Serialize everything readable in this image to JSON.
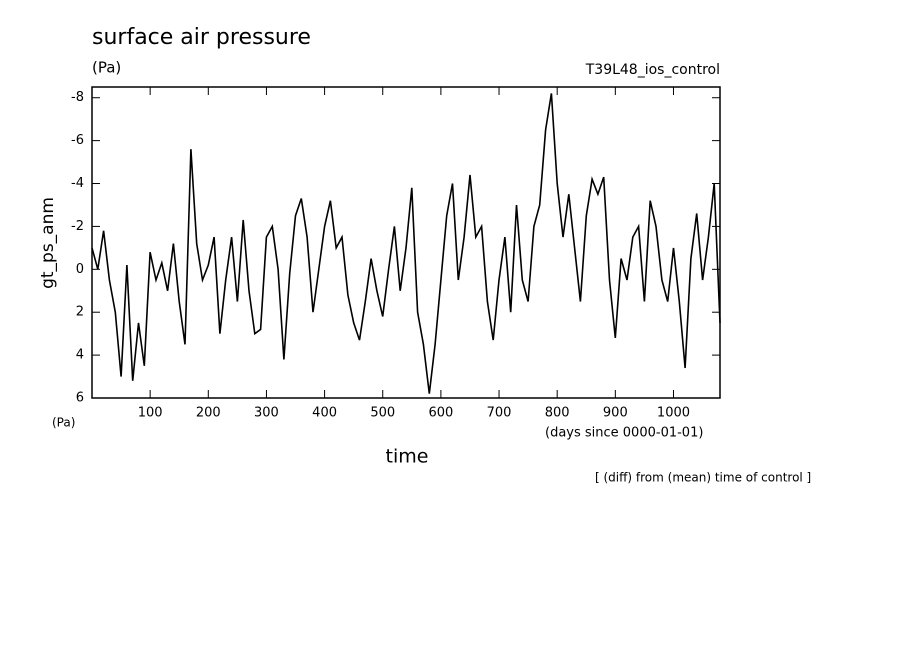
{
  "chart_data": {
    "type": "line",
    "title": "surface air pressure",
    "units_top": "(Pa)",
    "experiment": "T39L48_ios_control",
    "y_label": "gt_ps_anm",
    "units_axis": "(Pa)",
    "x_units": "(days since 0000-01-01)",
    "x_label": "time",
    "note": "[ (diff) from (mean) time of control ]",
    "color": "#000000",
    "xlim": [
      0,
      1080
    ],
    "xticks": [
      100,
      200,
      300,
      400,
      500,
      600,
      700,
      800,
      900,
      1000
    ],
    "ylim": [
      6,
      -8.5
    ],
    "yticks": [
      -8,
      -6,
      -4,
      -2,
      0,
      2,
      4,
      6
    ],
    "x": [
      0,
      10,
      20,
      30,
      40,
      50,
      60,
      70,
      80,
      90,
      100,
      110,
      120,
      130,
      140,
      150,
      160,
      170,
      180,
      190,
      200,
      210,
      220,
      230,
      240,
      250,
      260,
      270,
      280,
      290,
      300,
      310,
      320,
      330,
      340,
      350,
      360,
      370,
      380,
      390,
      400,
      410,
      420,
      430,
      440,
      450,
      460,
      470,
      480,
      490,
      500,
      510,
      520,
      530,
      540,
      550,
      560,
      570,
      580,
      590,
      600,
      610,
      620,
      630,
      640,
      650,
      660,
      670,
      680,
      690,
      700,
      710,
      720,
      730,
      740,
      750,
      760,
      770,
      780,
      790,
      800,
      810,
      820,
      830,
      840,
      850,
      860,
      870,
      880,
      890,
      900,
      910,
      920,
      930,
      940,
      950,
      960,
      970,
      980,
      990,
      1000,
      1010,
      1020,
      1030,
      1040,
      1050,
      1060,
      1070,
      1080
    ],
    "values": [
      -1,
      0,
      -1.8,
      0.5,
      2,
      5,
      -0.2,
      5.2,
      2.5,
      4.5,
      -0.8,
      0.5,
      -0.3,
      1,
      -1.2,
      1.5,
      3.5,
      -5.6,
      -1.2,
      0.5,
      -0.2,
      -1.5,
      3,
      0.5,
      -1.5,
      1.5,
      -2.3,
      1,
      3,
      2.8,
      -1.5,
      -2,
      0,
      4.2,
      0.2,
      -2.5,
      -3.3,
      -1.5,
      2,
      0,
      -2,
      -3.2,
      -1,
      -1.5,
      1.2,
      2.5,
      3.3,
      1.5,
      -0.5,
      1,
      2.2,
      0,
      -2,
      1,
      -1,
      -3.8,
      2,
      3.5,
      5.8,
      3.5,
      0.5,
      -2.5,
      -4,
      0.5,
      -1.5,
      -4.4,
      -1.5,
      -2,
      1.5,
      3.3,
      0.5,
      -1.5,
      2,
      -3,
      0.5,
      1.5,
      -2,
      -3,
      -6.5,
      -8.2,
      -4,
      -1.5,
      -3.5,
      -1,
      1.5,
      -2.5,
      -4.2,
      -3.5,
      -4.3,
      0.5,
      3.2,
      -0.5,
      0.5,
      -1.5,
      -2,
      1.5,
      -3.2,
      -2,
      0.5,
      1.5,
      -1,
      1.5,
      4.6,
      -0.5,
      -2.6,
      0.5,
      -1.5,
      -4,
      2.5
    ]
  }
}
